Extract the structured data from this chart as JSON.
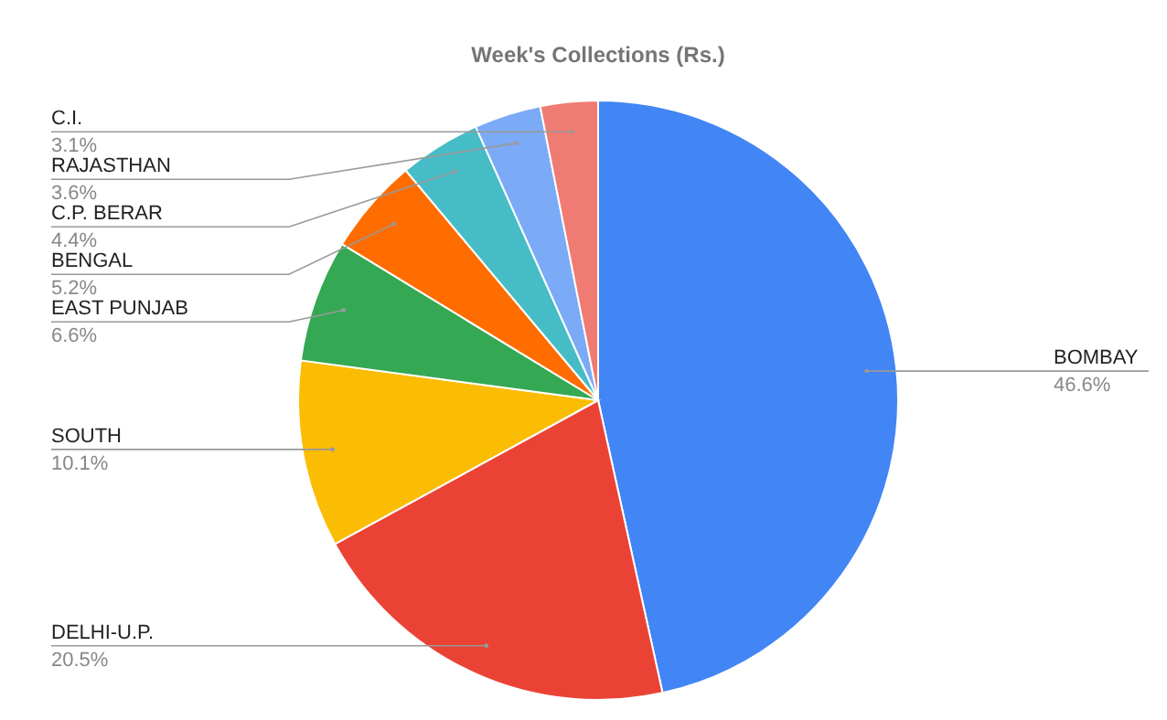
{
  "chart_data": {
    "type": "pie",
    "title": "Week's Collections (Rs.)",
    "categories": [
      "BOMBAY",
      "DELHI-U.P.",
      "SOUTH",
      "EAST PUNJAB",
      "BENGAL",
      "C.P. BERAR",
      "RAJASTHAN",
      "C.I."
    ],
    "values": [
      46.6,
      20.5,
      10.1,
      6.6,
      5.2,
      4.4,
      3.6,
      3.1
    ],
    "value_labels": [
      "46.6%",
      "20.5%",
      "10.1%",
      "6.6%",
      "5.2%",
      "4.4%",
      "3.6%",
      "3.1%"
    ],
    "colors": [
      "#4285f4",
      "#ea4335",
      "#fbbc04",
      "#34a853",
      "#ff6d01",
      "#46bdc6",
      "#7baaf7",
      "#f07b72"
    ],
    "legend": false
  }
}
